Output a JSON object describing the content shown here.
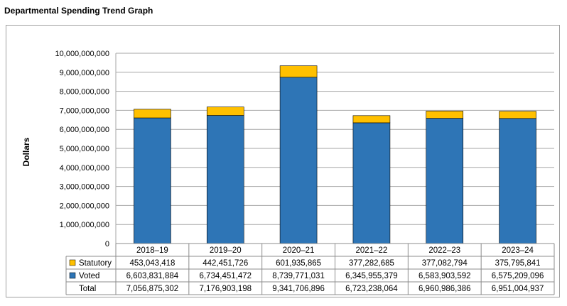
{
  "page": {
    "title": "Departmental Spending Trend Graph"
  },
  "chart_data": {
    "type": "bar",
    "stacked": true,
    "title": "",
    "xlabel": "",
    "ylabel": "Dollars",
    "ylim": [
      0,
      10000000000
    ],
    "yticks": [
      0,
      1000000000,
      2000000000,
      3000000000,
      4000000000,
      5000000000,
      6000000000,
      7000000000,
      8000000000,
      9000000000,
      10000000000
    ],
    "ytick_labels": [
      "0",
      "1,000,000,000",
      "2,000,000,000",
      "3,000,000,000",
      "4,000,000,000",
      "5,000,000,000",
      "6,000,000,000",
      "7,000,000,000",
      "8,000,000,000",
      "9,000,000,000",
      "10,000,000,000"
    ],
    "grid": true,
    "categories": [
      "2018–19",
      "2019–20",
      "2020–21",
      "2021–22",
      "2022–23",
      "2023–24"
    ],
    "series": [
      {
        "name": "Statutory",
        "color": "#ffc000",
        "values": [
          453043418,
          442451726,
          601935865,
          377282685,
          377082794,
          375795841
        ],
        "labels": [
          "453,043,418",
          "442,451,726",
          "601,935,865",
          "377,282,685",
          "377,082,794",
          "375,795,841"
        ]
      },
      {
        "name": "Voted",
        "color": "#2e75b6",
        "values": [
          6603831884,
          6734451472,
          8739771031,
          6345955379,
          6583903592,
          6575209096
        ],
        "labels": [
          "6,603,831,884",
          "6,734,451,472",
          "8,739,771,031",
          "6,345,955,379",
          "6,583,903,592",
          "6,575,209,096"
        ]
      }
    ],
    "total": {
      "name": "Total",
      "values": [
        7056875302,
        7176903198,
        9341706896,
        6723238064,
        6960986386,
        6951004937
      ],
      "labels": [
        "7,056,875,302",
        "7,176,903,198",
        "9,341,706,896",
        "6,723,238,064",
        "6,960,986,386",
        "6,951,004,937"
      ]
    },
    "legend": "data-table"
  }
}
